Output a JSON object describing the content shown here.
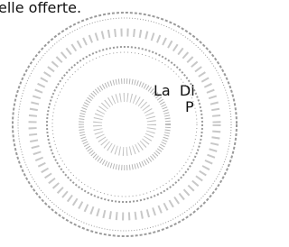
{
  "document": {
    "top_line": "elle offerte.",
    "signature_line_1": "La  Di",
    "signature_line_2": "P"
  }
}
